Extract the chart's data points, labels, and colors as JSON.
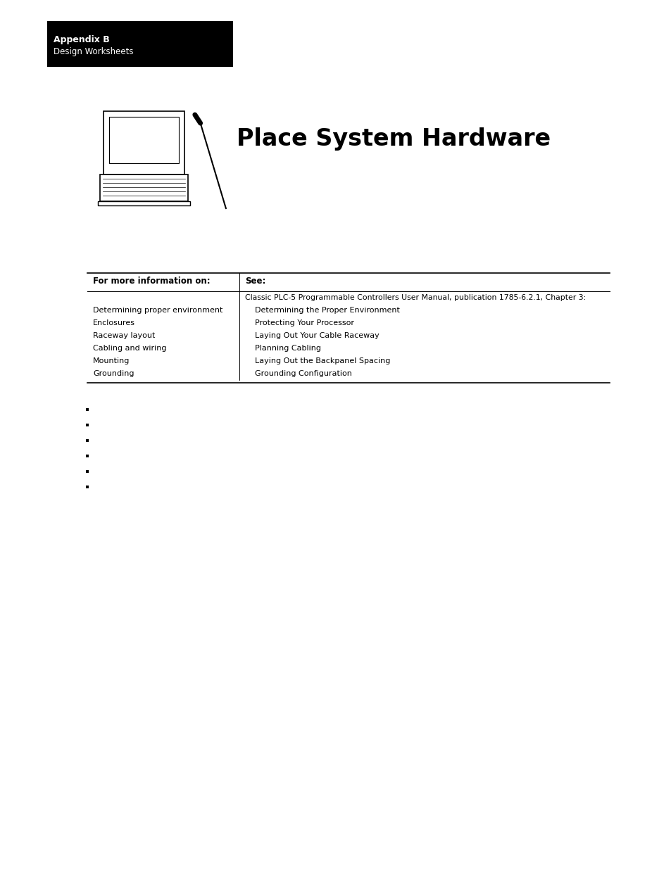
{
  "bg_color": "#ffffff",
  "header_box_color": "#000000",
  "header_text_color": "#ffffff",
  "header_line1": "Appendix B",
  "header_line2": "Design Worksheets",
  "title": "Place System Hardware",
  "title_fontsize": 24,
  "col1_header": "For more information on:",
  "col2_header": "See:",
  "col1_rows": [
    "Determining proper environment",
    "Enclosures",
    "Raceway layout",
    "Cabling and wiring",
    "Mounting",
    "Grounding"
  ],
  "col2_first": "Classic PLC-5 Programmable Controllers User Manual, publication 1785-6.2.1, Chapter 3:",
  "col2_rows": [
    "Determining the Proper Environment",
    "Protecting Your Processor",
    "Laying Out Your Cable Raceway",
    "Planning Cabling",
    "Laying Out the Backpanel Spacing",
    "Grounding Configuration"
  ]
}
